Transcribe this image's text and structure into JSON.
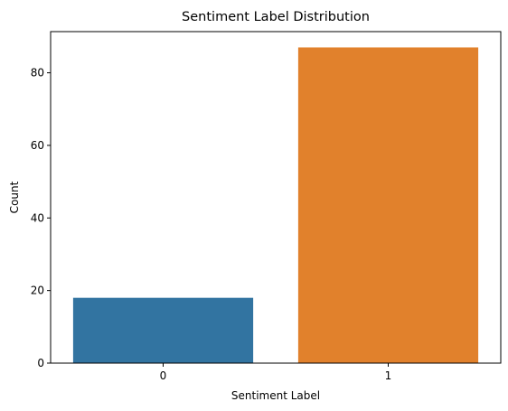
{
  "chart_data": {
    "type": "bar",
    "title": "Sentiment Label Distribution",
    "xlabel": "Sentiment Label",
    "ylabel": "Count",
    "categories": [
      "0",
      "1"
    ],
    "values": [
      18,
      87
    ],
    "colors": [
      "#3274a1",
      "#e1812c"
    ],
    "ylim": [
      0,
      91.35
    ],
    "yticks": [
      0,
      20,
      40,
      60,
      80
    ],
    "grid": false,
    "legend": "none"
  }
}
